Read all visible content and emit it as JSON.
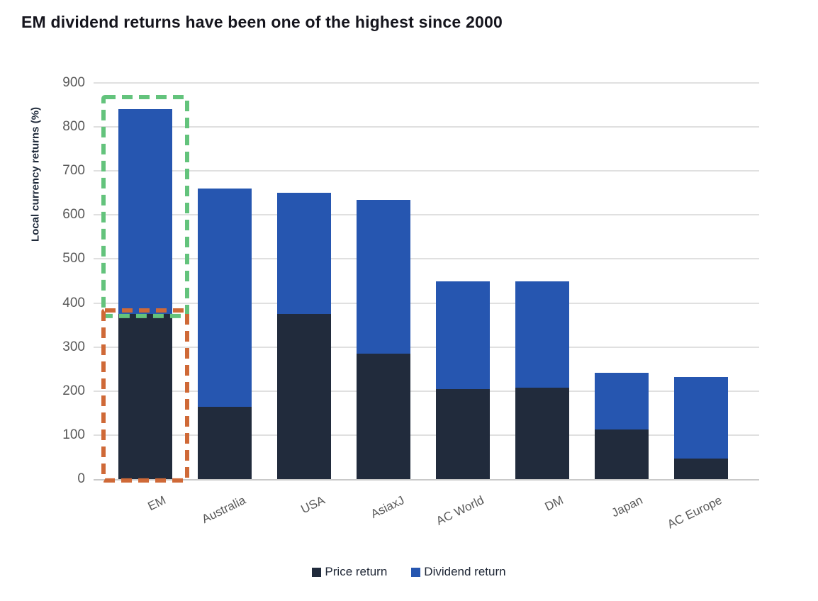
{
  "title": "EM dividend returns have been one of the highest since 2000",
  "chart_data": {
    "type": "bar",
    "stacked": true,
    "title": "EM dividend returns have been one of the highest since 2000",
    "xlabel": "",
    "ylabel": "Local currency returns (%)",
    "ylim": [
      0,
      900
    ],
    "yticks": [
      0,
      100,
      200,
      300,
      400,
      500,
      600,
      700,
      800,
      900
    ],
    "grid": true,
    "legend_position": "bottom",
    "categories": [
      "EM",
      "Australia",
      "USA",
      "AsiaxJ",
      "AC World",
      "DM",
      "Japan",
      "AC Europe"
    ],
    "series": [
      {
        "name": "Price return",
        "color": "#212B3C",
        "values": [
          375,
          165,
          375,
          285,
          205,
          208,
          112,
          46
        ]
      },
      {
        "name": "Dividend return",
        "color": "#2656B0",
        "values": [
          465,
          495,
          275,
          350,
          245,
          242,
          130,
          186
        ]
      }
    ],
    "totals": [
      840,
      660,
      650,
      635,
      450,
      450,
      242,
      232
    ],
    "annotations": [
      {
        "id": "em-dividend-highlight",
        "shape": "dashed-rect",
        "category": "EM",
        "segment": "Dividend return",
        "color": "#63C37C"
      },
      {
        "id": "em-price-highlight",
        "shape": "dashed-rect",
        "category": "EM",
        "segment": "Price return",
        "color": "#CF6937"
      }
    ],
    "style": {
      "grid_color": "#e0e0e0",
      "axis_line_color": "#c9c9c9",
      "tick_text_color": "#595959",
      "category_text_color": "#595959",
      "title_text_color": "#15151d",
      "axis_label_color": "#1f2a3a",
      "legend_text_color": "#1d2534"
    }
  }
}
